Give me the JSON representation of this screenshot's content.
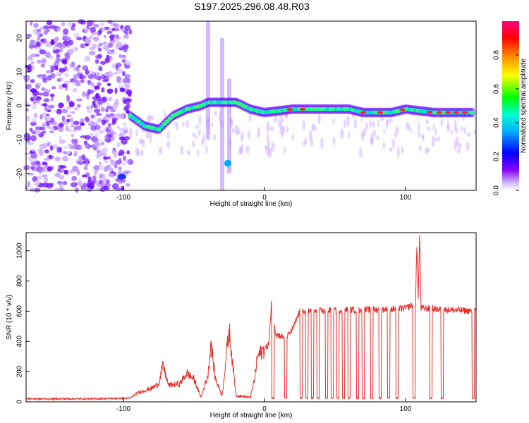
{
  "title": "S197.2025.296.08.48.R03",
  "chart_data": [
    {
      "type": "heatmap",
      "name": "spectrogram",
      "xlabel": "Height of straight line (km)",
      "ylabel": "Frequency (Hz)",
      "xlim": [
        -169,
        150
      ],
      "ylim": [
        -25,
        25
      ],
      "xticks": [
        -100,
        0,
        100
      ],
      "yticks": [
        -20,
        -10,
        0,
        10,
        20
      ],
      "colorbar": {
        "label": "Normalized spectral amplitude",
        "range": [
          0,
          1
        ],
        "ticks": [
          0.0,
          0.2,
          0.4,
          0.6,
          0.8
        ]
      },
      "ridge": [
        {
          "x": -95,
          "y": -3
        },
        {
          "x": -85,
          "y": -6
        },
        {
          "x": -75,
          "y": -7
        },
        {
          "x": -65,
          "y": -3
        },
        {
          "x": -55,
          "y": -1
        },
        {
          "x": -45,
          "y": 0
        },
        {
          "x": -40,
          "y": 1
        },
        {
          "x": -20,
          "y": 1
        },
        {
          "x": -10,
          "y": -1
        },
        {
          "x": 0,
          "y": -2
        },
        {
          "x": 20,
          "y": -1
        },
        {
          "x": 40,
          "y": -1
        },
        {
          "x": 60,
          "y": -1
        },
        {
          "x": 70,
          "y": -2
        },
        {
          "x": 80,
          "y": -2
        },
        {
          "x": 90,
          "y": -2
        },
        {
          "x": 100,
          "y": -1
        },
        {
          "x": 120,
          "y": -2
        },
        {
          "x": 148,
          "y": -2
        }
      ]
    },
    {
      "type": "line",
      "name": "snr",
      "xlabel": "Height of straight line (km)",
      "ylabel": "SNR (10 * v/v)",
      "xlim": [
        -169,
        150
      ],
      "ylim": [
        0,
        1120
      ],
      "xticks": [
        -100,
        0,
        100
      ],
      "yticks": [
        0,
        200,
        400,
        600,
        800,
        1000
      ],
      "color": "#e8302a",
      "segments": [
        {
          "x": -169,
          "y": 20
        },
        {
          "x": -120,
          "y": 20
        },
        {
          "x": -95,
          "y": 25
        },
        {
          "x": -90,
          "y": 60
        },
        {
          "x": -80,
          "y": 90
        },
        {
          "x": -75,
          "y": 120
        },
        {
          "x": -72,
          "y": 240
        },
        {
          "x": -68,
          "y": 110
        },
        {
          "x": -60,
          "y": 120
        },
        {
          "x": -55,
          "y": 190
        },
        {
          "x": -50,
          "y": 150
        },
        {
          "x": -45,
          "y": 30
        },
        {
          "x": -40,
          "y": 180
        },
        {
          "x": -38,
          "y": 400
        },
        {
          "x": -35,
          "y": 160
        },
        {
          "x": -30,
          "y": 40
        },
        {
          "x": -27,
          "y": 320
        },
        {
          "x": -25,
          "y": 470
        },
        {
          "x": -22,
          "y": 200
        },
        {
          "x": -20,
          "y": 40
        },
        {
          "x": -10,
          "y": 30
        },
        {
          "x": -7,
          "y": 150
        },
        {
          "x": -5,
          "y": 300
        },
        {
          "x": 0,
          "y": 350
        },
        {
          "x": 3,
          "y": 380
        },
        {
          "x": 5,
          "y": 650
        },
        {
          "x": 8,
          "y": 450
        },
        {
          "x": 15,
          "y": 420
        },
        {
          "x": 20,
          "y": 480
        },
        {
          "x": 25,
          "y": 600
        },
        {
          "x": 40,
          "y": 600
        },
        {
          "x": 60,
          "y": 610
        },
        {
          "x": 80,
          "y": 610
        },
        {
          "x": 100,
          "y": 620
        },
        {
          "x": 107,
          "y": 650
        },
        {
          "x": 108,
          "y": 1030
        },
        {
          "x": 109,
          "y": 700
        },
        {
          "x": 110,
          "y": 1110
        },
        {
          "x": 111,
          "y": 620
        },
        {
          "x": 130,
          "y": 610
        },
        {
          "x": 150,
          "y": 600
        }
      ],
      "dropouts_to_baseline_near_x": [
        6,
        15,
        26,
        30,
        34,
        38,
        44,
        48,
        52,
        56,
        60,
        66,
        70,
        76,
        82,
        88,
        94,
        106,
        118,
        126,
        148
      ]
    }
  ]
}
